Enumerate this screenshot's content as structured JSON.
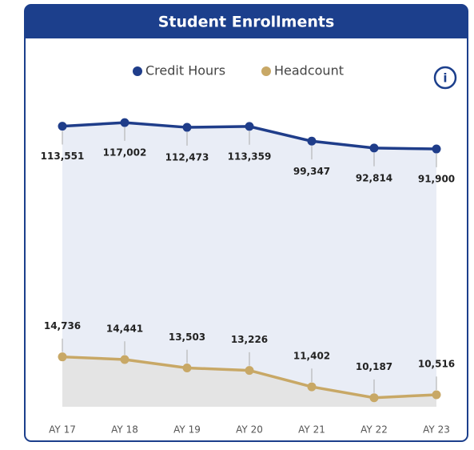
{
  "chart_data": {
    "type": "area",
    "title": "Student Enrollments",
    "categories": [
      "AY 17",
      "AY 18",
      "AY 19",
      "AY 20",
      "AY 21",
      "AY 22",
      "AY 23"
    ],
    "series": [
      {
        "name": "Credit Hours",
        "color": "#1f3d8a",
        "fill": "#e9edf6",
        "values": [
          113551,
          117002,
          112473,
          113359,
          99347,
          92814,
          91900
        ],
        "value_labels": [
          "113,551",
          "117,002",
          "112,473",
          "113,359",
          "99,347",
          "92,814",
          "91,900"
        ]
      },
      {
        "name": "Headcount",
        "color": "#c8a866",
        "fill": "#e4e4e4",
        "axis": "y2",
        "values": [
          14736,
          14441,
          13503,
          13226,
          11402,
          10187,
          10516
        ],
        "value_labels": [
          "14,736",
          "14,441",
          "13,503",
          "13,226",
          "11,402",
          "10,187",
          "10,516"
        ]
      }
    ],
    "ylim": [
      -155000,
      127000
    ],
    "y2lim": [
      9000,
      42000
    ],
    "legend": "top"
  }
}
